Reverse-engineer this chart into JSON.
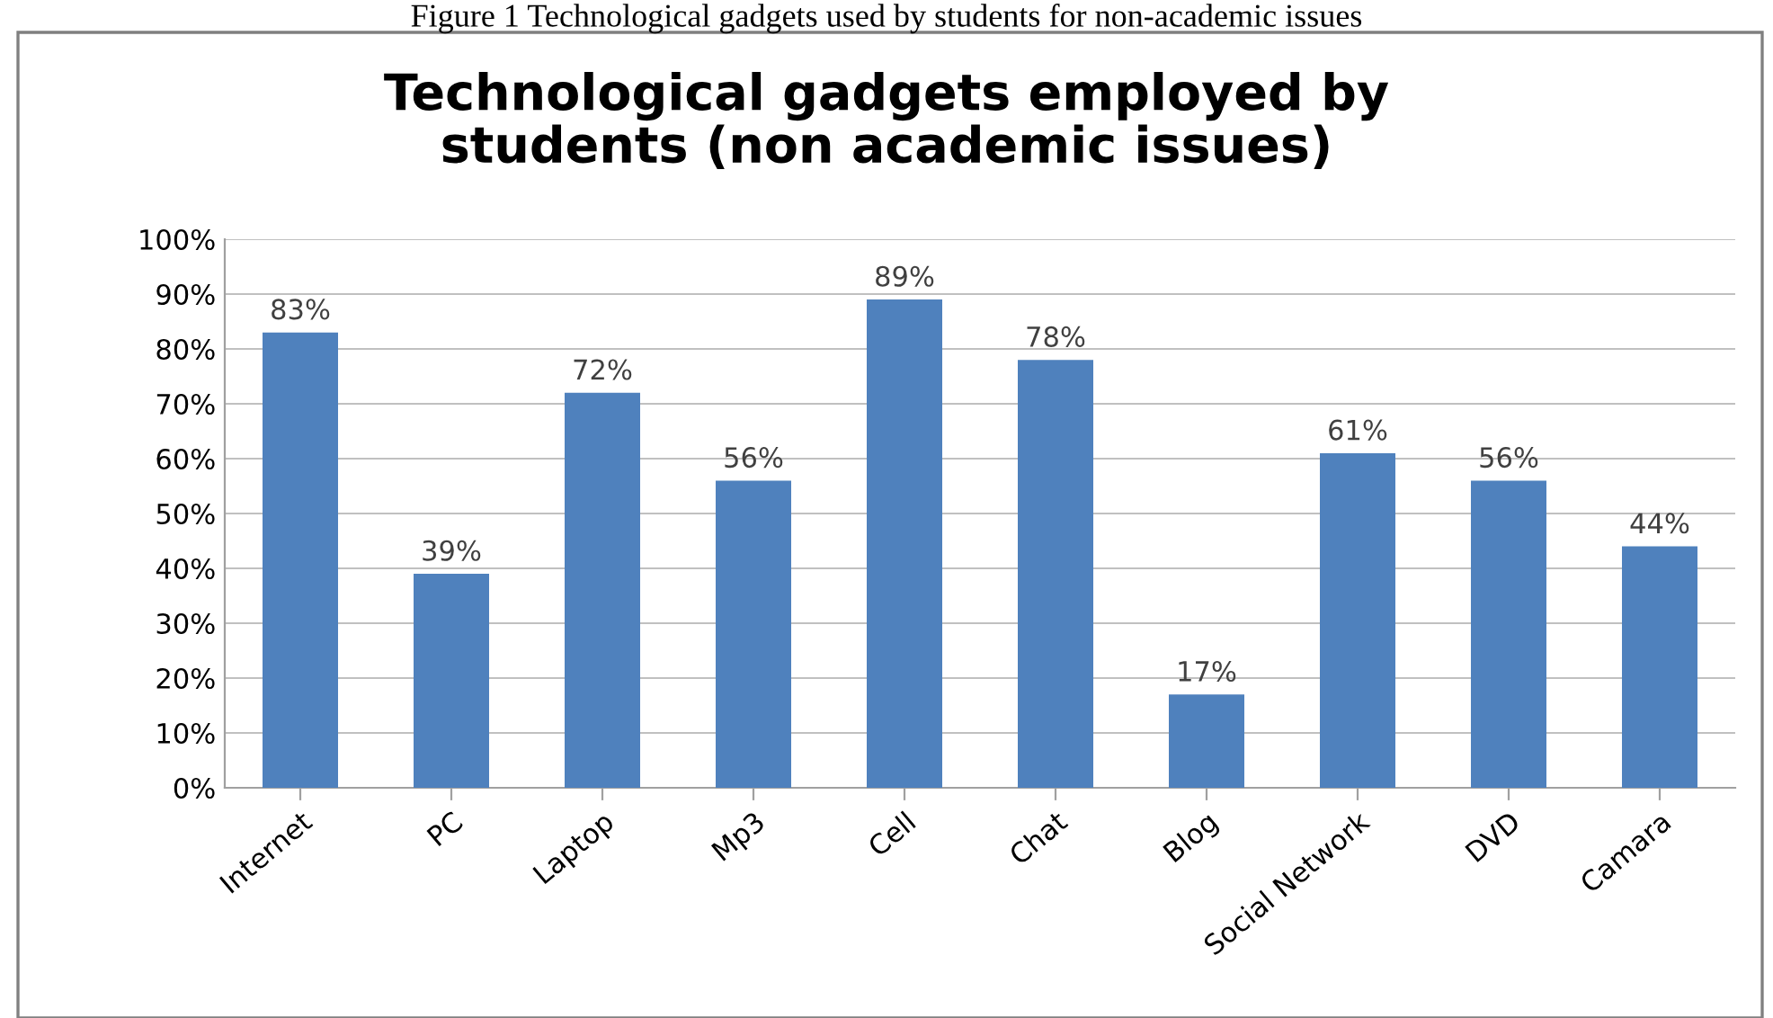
{
  "chart_data": {
    "type": "bar",
    "title": "Technological gadgets employed by\nstudents (non academic issues)",
    "annotations": [
      "Figure 1 Technological gadgets used by students for non-academic issues"
    ],
    "categories": [
      "Internet",
      "PC",
      "Laptop",
      "Mp3",
      "Cell",
      "Chat",
      "Blog",
      "Social Network",
      "DVD",
      "Camara"
    ],
    "values": [
      83,
      39,
      72,
      56,
      89,
      78,
      17,
      61,
      56,
      44
    ],
    "value_labels": [
      "83%",
      "39%",
      "72%",
      "56%",
      "89%",
      "78%",
      "17%",
      "61%",
      "56%",
      "44%"
    ],
    "color": "#4f81bd",
    "ylim": [
      0,
      100
    ],
    "yticks": [
      {
        "value": 0,
        "label": "0%"
      },
      {
        "value": 10,
        "label": "10%"
      },
      {
        "value": 20,
        "label": "20%"
      },
      {
        "value": 30,
        "label": "30%"
      },
      {
        "value": 40,
        "label": "40%"
      },
      {
        "value": 50,
        "label": "50%"
      },
      {
        "value": 60,
        "label": "60%"
      },
      {
        "value": 70,
        "label": "70%"
      },
      {
        "value": 80,
        "label": "80%"
      },
      {
        "value": 90,
        "label": "90%"
      },
      {
        "value": 100,
        "label": "100%"
      }
    ],
    "grid": "y",
    "legend": false
  }
}
